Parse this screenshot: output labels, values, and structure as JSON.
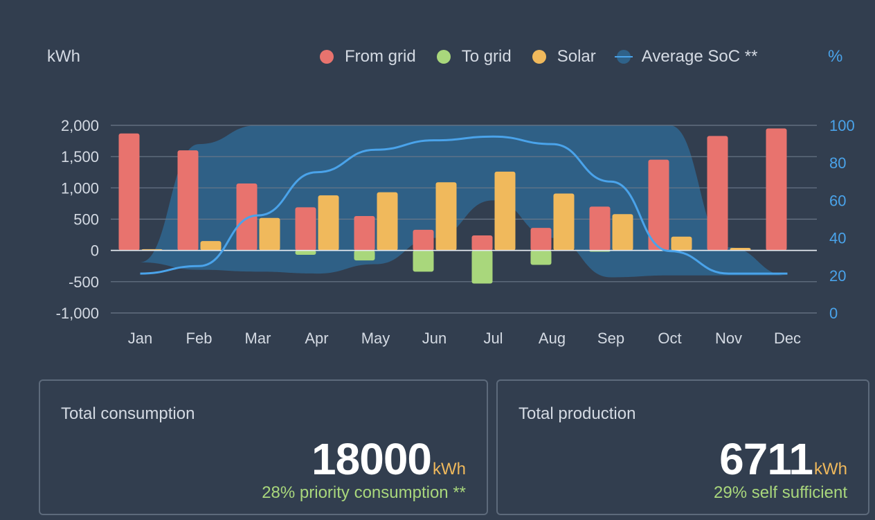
{
  "chart_data": {
    "type": "bar",
    "categories": [
      "Jan",
      "Feb",
      "Mar",
      "Apr",
      "May",
      "Jun",
      "Jul",
      "Aug",
      "Sep",
      "Oct",
      "Nov",
      "Dec"
    ],
    "series": [
      {
        "name": "From grid",
        "kind": "bar",
        "axis": "left",
        "color": "#e8736e",
        "values": [
          1870,
          1600,
          1070,
          690,
          550,
          330,
          240,
          360,
          700,
          1450,
          1830,
          1950
        ]
      },
      {
        "name": "To grid",
        "kind": "bar",
        "axis": "left",
        "color": "#a9d77c",
        "values": [
          0,
          0,
          0,
          -70,
          -160,
          -340,
          -530,
          -230,
          -20,
          0,
          0,
          0
        ]
      },
      {
        "name": "Solar",
        "kind": "bar",
        "axis": "left",
        "color": "#f0b95c",
        "values": [
          20,
          150,
          520,
          880,
          930,
          1090,
          1260,
          910,
          580,
          220,
          40,
          0
        ]
      },
      {
        "name": "Average SoC **",
        "kind": "line+band",
        "axis": "right",
        "color": "#4aa3ea",
        "band_color": "#2f6289",
        "values": [
          21,
          25,
          52,
          75,
          87,
          92,
          94,
          90,
          70,
          33,
          21,
          21
        ],
        "band_low": [
          27,
          23,
          22,
          21,
          26,
          40,
          60,
          40,
          19,
          20,
          20,
          20
        ],
        "band_high": [
          27,
          90,
          100,
          100,
          100,
          100,
          100,
          100,
          100,
          100,
          35,
          20
        ]
      }
    ],
    "ylabel": "kWh",
    "ylabel_right": "%",
    "ylim": [
      -1000,
      2000
    ],
    "yticks": [
      2000,
      1500,
      1000,
      500,
      0,
      -500,
      -1000
    ],
    "ytick_labels": [
      "2,000",
      "1,500",
      "1,000",
      "500",
      "0",
      "-500",
      "-1,000"
    ],
    "ylim_right": [
      0,
      100
    ],
    "yticks_right": [
      100,
      80,
      60,
      40,
      20,
      0
    ],
    "legend_position": "top",
    "grid": true
  },
  "legend": {
    "left_unit": "kWh",
    "right_unit": "%",
    "items": [
      {
        "label": "From grid",
        "color": "#e8736e"
      },
      {
        "label": "To grid",
        "color": "#a9d77c"
      },
      {
        "label": "Solar",
        "color": "#f0b95c"
      },
      {
        "label": "Average SoC **",
        "color": "#2f6289",
        "line_color": "#4aa3ea"
      }
    ]
  },
  "cards": {
    "consumption": {
      "title": "Total consumption",
      "value": "18000",
      "unit": "kWh",
      "sub": "28% priority consumption **"
    },
    "production": {
      "title": "Total production",
      "value": "6711",
      "unit": "kWh",
      "sub": "29% self sufficient"
    }
  }
}
